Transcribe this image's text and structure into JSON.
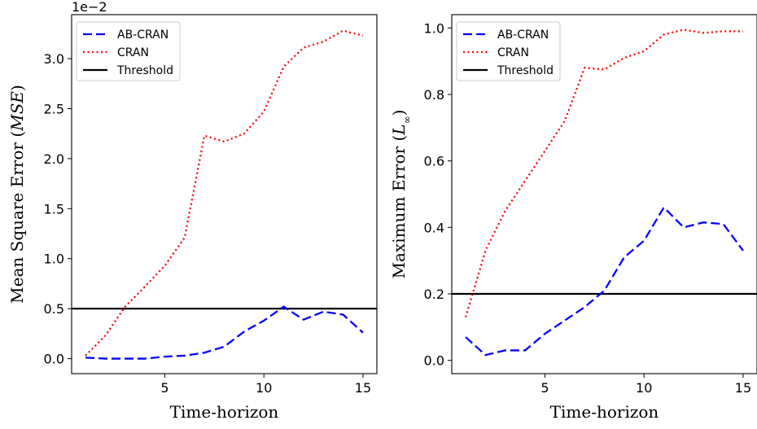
{
  "chart_data": [
    {
      "type": "line",
      "x_range": [
        0.3,
        15.7
      ],
      "y_range": [
        -0.0015,
        0.0344
      ],
      "xticks": [
        5,
        10,
        15
      ],
      "xtick_labels": [
        "5",
        "10",
        "15"
      ],
      "yticks": [
        0.0,
        0.005,
        0.01,
        0.015,
        0.02,
        0.025,
        0.03
      ],
      "ytick_labels": [
        "0.0",
        "0.5",
        "1.0",
        "1.5",
        "2.0",
        "2.5",
        "3.0"
      ],
      "offset_text": "1e−2",
      "xlabel": "Time-horizon",
      "ylabel": "Mean Square Error (MSE)",
      "ylabel_parts": {
        "main": "Mean Square Error (",
        "italic": "MSE",
        "close": ")"
      },
      "legend_position": "upper-left",
      "grid": false,
      "threshold": {
        "name": "Threshold",
        "value": 0.005,
        "color": "#000000"
      },
      "x": [
        1,
        2,
        3,
        4,
        5,
        6,
        7,
        8,
        9,
        10,
        11,
        12,
        13,
        14,
        15
      ],
      "series": [
        {
          "name": "AB-CRAN",
          "color": "#0000ff",
          "style": "dashed",
          "values": [
            0.0001,
            0.0,
            0.0,
            0.0,
            0.0002,
            0.0003,
            0.0006,
            0.0012,
            0.0027,
            0.0038,
            0.0052,
            0.0039,
            0.0047,
            0.0044,
            0.0026
          ]
        },
        {
          "name": "CRAN",
          "color": "#ff0000",
          "style": "dotted",
          "values": [
            0.0003,
            0.0023,
            0.0052,
            0.0072,
            0.0093,
            0.0121,
            0.0223,
            0.0217,
            0.0225,
            0.0247,
            0.0292,
            0.0311,
            0.0317,
            0.0328,
            0.0323
          ]
        }
      ]
    },
    {
      "type": "line",
      "x_range": [
        0.3,
        15.7
      ],
      "y_range": [
        -0.04,
        1.04
      ],
      "xticks": [
        5,
        10,
        15
      ],
      "xtick_labels": [
        "5",
        "10",
        "15"
      ],
      "yticks": [
        0.0,
        0.2,
        0.4,
        0.6,
        0.8,
        1.0
      ],
      "ytick_labels": [
        "0.0",
        "0.2",
        "0.4",
        "0.6",
        "0.8",
        "1.0"
      ],
      "xlabel": "Time-horizon",
      "ylabel": "Maximum Error (L∞)",
      "ylabel_parts": {
        "main": "Maximum Error (",
        "italic": "L",
        "sub": "∞",
        "close": ")"
      },
      "legend_position": "upper-left",
      "grid": false,
      "threshold": {
        "name": "Threshold",
        "value": 0.2,
        "color": "#000000"
      },
      "x": [
        1,
        2,
        3,
        4,
        5,
        6,
        7,
        8,
        9,
        10,
        11,
        12,
        13,
        14,
        15
      ],
      "series": [
        {
          "name": "AB-CRAN",
          "color": "#0000ff",
          "style": "dashed",
          "values": [
            0.07,
            0.016,
            0.03,
            0.03,
            0.08,
            0.12,
            0.16,
            0.21,
            0.31,
            0.36,
            0.46,
            0.4,
            0.415,
            0.41,
            0.33
          ]
        },
        {
          "name": "CRAN",
          "color": "#ff0000",
          "style": "dotted",
          "values": [
            0.13,
            0.33,
            0.45,
            0.54,
            0.63,
            0.72,
            0.88,
            0.875,
            0.91,
            0.93,
            0.98,
            0.995,
            0.985,
            0.99,
            0.99
          ]
        }
      ]
    }
  ]
}
